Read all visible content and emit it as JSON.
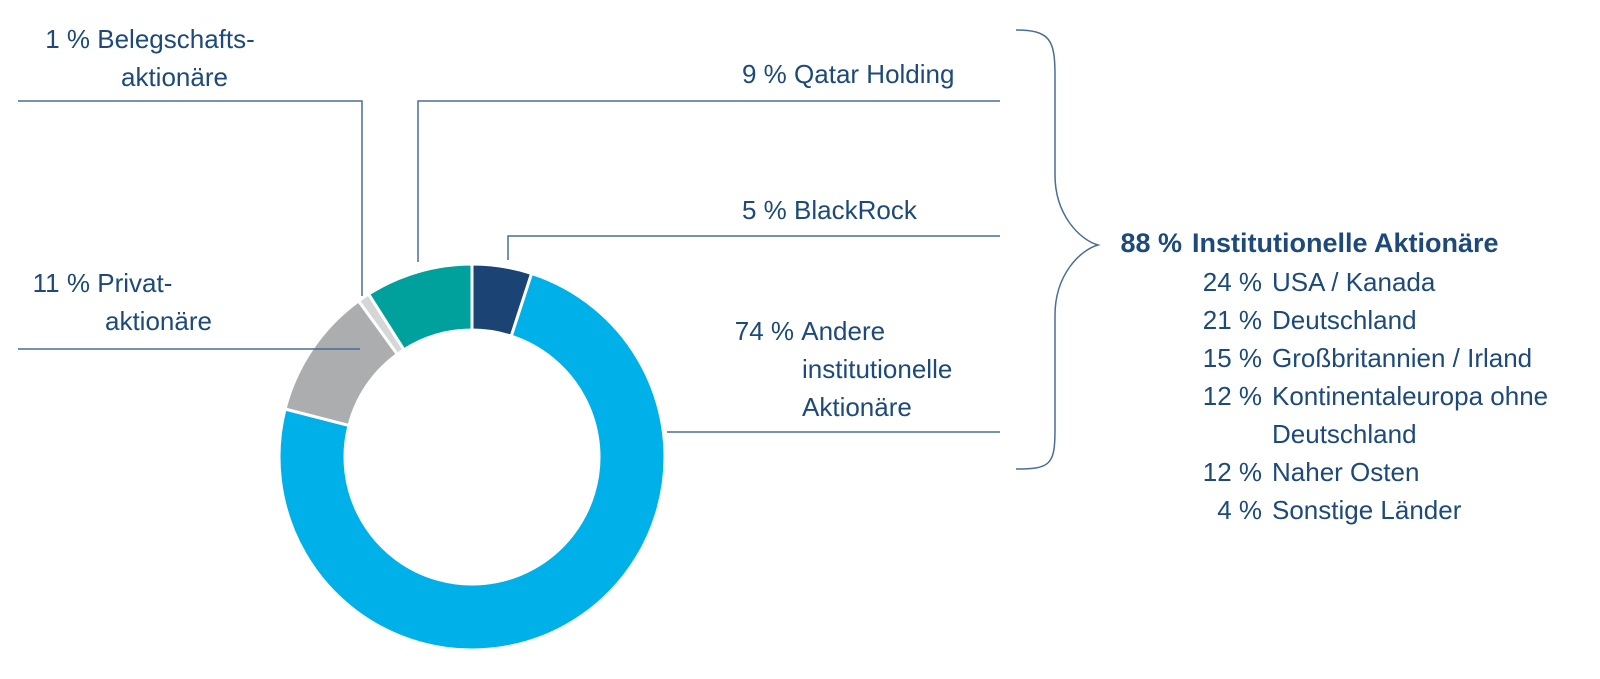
{
  "chart_data": {
    "type": "pie",
    "subtype": "donut",
    "title": "",
    "categories": [
      "BlackRock",
      "Andere institutionelle Aktionäre",
      "Privataktionäre",
      "Belegschaftsaktionäre",
      "Qatar Holding"
    ],
    "values": [
      5,
      74,
      11,
      1,
      9
    ],
    "colors": [
      "#1b4474",
      "#00b0e8",
      "#acadaf",
      "#d5d6d7",
      "#00a19c"
    ],
    "start_angle_deg": 0,
    "direction": "clockwise",
    "group_annotation": {
      "label": "Institutionelle Aktionäre",
      "value": 88,
      "members": [
        "Qatar Holding",
        "BlackRock",
        "Andere institutionelle Aktionäre"
      ],
      "breakdown": [
        {
          "region": "USA / Kanada",
          "value": 24
        },
        {
          "region": "Deutschland",
          "value": 21
        },
        {
          "region": "Großbritannien / Irland",
          "value": 15
        },
        {
          "region": "Kontinentaleuropa ohne Deutschland",
          "value": 12
        },
        {
          "region": "Naher Osten",
          "value": 12
        },
        {
          "region": "Sonstige Länder",
          "value": 4
        }
      ]
    }
  },
  "labels": {
    "belegschaft": {
      "pct": "1 %",
      "line1": "Belegschafts-",
      "line2": "aktionäre"
    },
    "privat": {
      "pct": "11 %",
      "line1": "Privat-",
      "line2": "aktionäre"
    },
    "qatar": {
      "pct": "9 %",
      "text": "Qatar Holding"
    },
    "blackrock": {
      "pct": "5 %",
      "text": "BlackRock"
    },
    "andere": {
      "pct": "74 %",
      "line1": "Andere",
      "line2": "institutionelle",
      "line3": "Aktionäre"
    }
  },
  "institutional": {
    "pct": "88 %",
    "title": "Institutionelle Aktionäre",
    "regions": [
      {
        "pct": "24 %",
        "name": "USA / Kanada"
      },
      {
        "pct": "21 %",
        "name": "Deutschland"
      },
      {
        "pct": "15 %",
        "name": "Großbritannien / Irland"
      },
      {
        "pct": "12 %",
        "name": "Kontinentaleuropa ohne Deutschland"
      },
      {
        "pct": "12 %",
        "name": "Naher Osten"
      },
      {
        "pct": "4 %",
        "name": "Sonstige Länder"
      }
    ]
  },
  "colors": {
    "text": "#1d4a7a",
    "leader_line": "#4a6d96"
  }
}
